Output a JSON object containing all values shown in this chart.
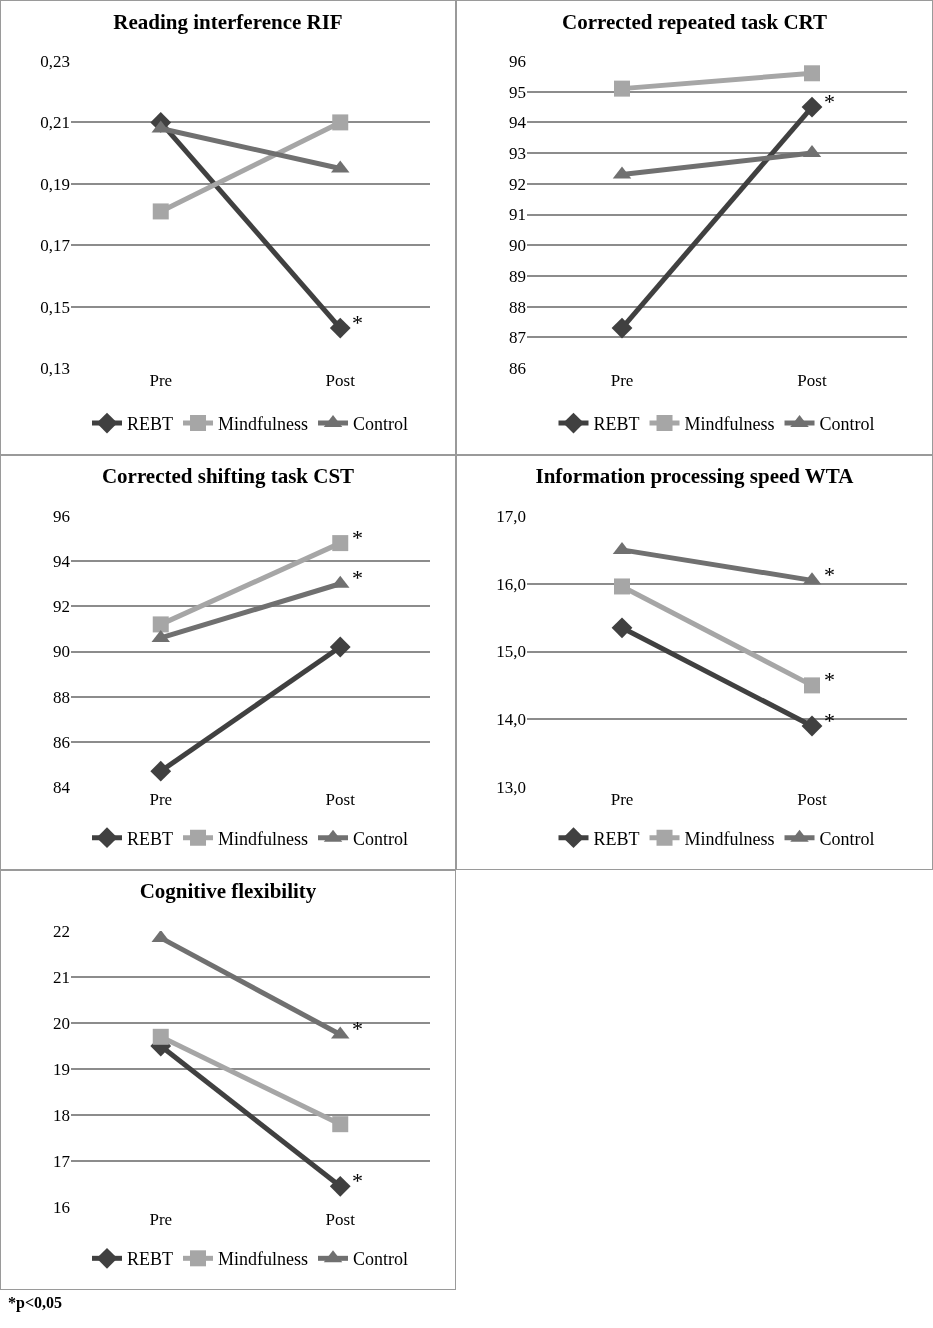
{
  "chart_data": [
    {
      "type": "line",
      "title": "Reading interference RIF",
      "categories": [
        "Pre",
        "Post"
      ],
      "grid": "y",
      "legend": "bottom",
      "ylim": [
        0.13,
        0.23
      ],
      "yticks": [
        {
          "value": 0.13,
          "label": "0,13"
        },
        {
          "value": 0.15,
          "label": "0,15"
        },
        {
          "value": 0.17,
          "label": "0,17"
        },
        {
          "value": 0.19,
          "label": "0,19"
        },
        {
          "value": 0.21,
          "label": "0,21"
        },
        {
          "value": 0.23,
          "label": "0,23"
        }
      ],
      "series": [
        {
          "name": "REBT",
          "color": "#404040",
          "marker": "diamond",
          "values": [
            0.21,
            0.143
          ]
        },
        {
          "name": "Mindfulness",
          "color": "#a6a6a6",
          "marker": "square",
          "values": [
            0.181,
            0.21
          ]
        },
        {
          "name": "Control",
          "color": "#707070",
          "marker": "triangle",
          "values": [
            0.208,
            0.195
          ]
        }
      ],
      "annotations": [
        {
          "text": "*",
          "x": "Post",
          "y": 0.143
        }
      ]
    },
    {
      "type": "line",
      "title": "Corrected repeated task CRT",
      "categories": [
        "Pre",
        "Post"
      ],
      "grid": "y",
      "legend": "bottom",
      "ylim": [
        86,
        96
      ],
      "yticks": [
        86,
        87,
        88,
        89,
        90,
        91,
        92,
        93,
        94,
        95,
        96
      ],
      "series": [
        {
          "name": "REBT",
          "color": "#404040",
          "marker": "diamond",
          "values": [
            87.3,
            94.5
          ]
        },
        {
          "name": "Mindfulness",
          "color": "#a6a6a6",
          "marker": "square",
          "values": [
            95.1,
            95.6
          ]
        },
        {
          "name": "Control",
          "color": "#707070",
          "marker": "triangle",
          "values": [
            92.3,
            93.0
          ]
        }
      ],
      "annotations": [
        {
          "text": "*",
          "x": "Post",
          "y": 94.5
        }
      ]
    },
    {
      "type": "line",
      "title": "Corrected shifting task CST",
      "categories": [
        "Pre",
        "Post"
      ],
      "grid": "y",
      "legend": "bottom",
      "ylim": [
        84,
        96
      ],
      "yticks": [
        84,
        86,
        88,
        90,
        92,
        94,
        96
      ],
      "series": [
        {
          "name": "REBT",
          "color": "#404040",
          "marker": "diamond",
          "values": [
            84.7,
            90.2
          ]
        },
        {
          "name": "Mindfulness",
          "color": "#a6a6a6",
          "marker": "square",
          "values": [
            91.2,
            94.8
          ]
        },
        {
          "name": "Control",
          "color": "#707070",
          "marker": "triangle",
          "values": [
            90.6,
            93.0
          ]
        }
      ],
      "annotations": [
        {
          "text": "*",
          "x": "Post",
          "y": 94.8
        },
        {
          "text": "*",
          "x": "Post",
          "y": 93.0
        }
      ]
    },
    {
      "type": "line",
      "title": "Information processing speed WTA",
      "categories": [
        "Pre",
        "Post"
      ],
      "grid": "y",
      "legend": "bottom",
      "ylim": [
        13,
        17
      ],
      "yticks": [
        {
          "value": 13,
          "label": "13,0"
        },
        {
          "value": 14,
          "label": "14,0"
        },
        {
          "value": 15,
          "label": "15,0"
        },
        {
          "value": 16,
          "label": "16,0"
        },
        {
          "value": 17,
          "label": "17,0"
        }
      ],
      "series": [
        {
          "name": "REBT",
          "color": "#404040",
          "marker": "diamond",
          "values": [
            15.35,
            13.9
          ]
        },
        {
          "name": "Mindfulness",
          "color": "#a6a6a6",
          "marker": "square",
          "values": [
            15.96,
            14.5
          ]
        },
        {
          "name": "Control",
          "color": "#707070",
          "marker": "triangle",
          "values": [
            16.5,
            16.05
          ]
        }
      ],
      "annotations": [
        {
          "text": "*",
          "x": "Post",
          "y": 16.05
        },
        {
          "text": "*",
          "x": "Post",
          "y": 14.5
        },
        {
          "text": "*",
          "x": "Post",
          "y": 13.9
        }
      ]
    },
    {
      "type": "line",
      "title": "Cognitive flexibility",
      "categories": [
        "Pre",
        "Post"
      ],
      "grid": "y",
      "legend": "bottom",
      "ylim": [
        16,
        22
      ],
      "yticks": [
        16,
        17,
        18,
        19,
        20,
        21,
        22
      ],
      "series": [
        {
          "name": "REBT",
          "color": "#404040",
          "marker": "diamond",
          "values": [
            19.5,
            16.45
          ]
        },
        {
          "name": "Mindfulness",
          "color": "#a6a6a6",
          "marker": "square",
          "values": [
            19.7,
            17.8
          ]
        },
        {
          "name": "Control",
          "color": "#707070",
          "marker": "triangle",
          "values": [
            21.85,
            19.75
          ]
        }
      ],
      "annotations": [
        {
          "text": "*",
          "x": "Post",
          "y": 19.75
        },
        {
          "text": "*",
          "x": "Post",
          "y": 16.45
        },
        "*p<0,05"
      ]
    }
  ]
}
